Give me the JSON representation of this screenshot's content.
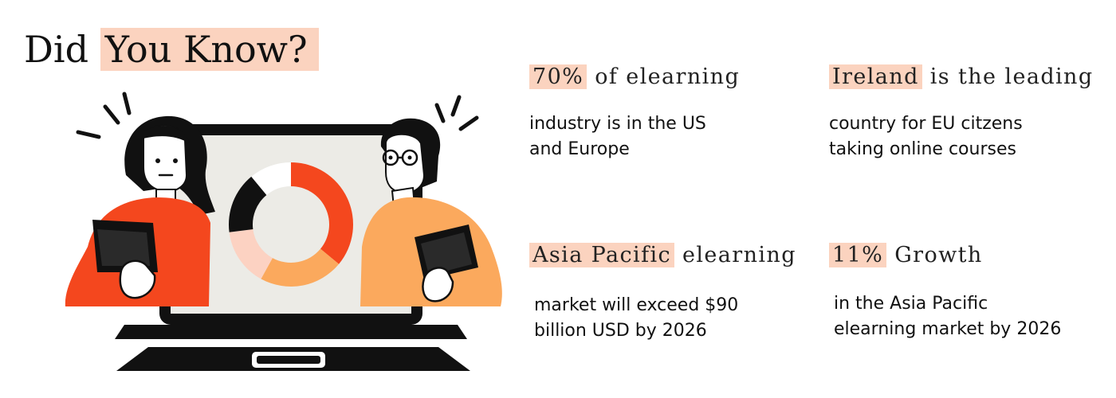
{
  "title": {
    "prefix": "Did ",
    "highlight": "You Know?"
  },
  "colors": {
    "highlight": "#fbd3bf",
    "orange_red": "#f4471e",
    "light_orange": "#fba95d",
    "peach": "#fcd2c2",
    "black": "#111111",
    "screen": "#ecebe6"
  },
  "illustration": {
    "donut_segments": [
      {
        "label": "segment-red",
        "value": 0.36,
        "color": "#f4471e"
      },
      {
        "label": "segment-light-orange",
        "value": 0.22,
        "color": "#fba95d"
      },
      {
        "label": "segment-peach",
        "value": 0.15,
        "color": "#fcd2c2"
      },
      {
        "label": "segment-black",
        "value": 0.16,
        "color": "#111111"
      },
      {
        "label": "segment-white",
        "value": 0.11,
        "color": "#ffffff"
      }
    ]
  },
  "facts": [
    {
      "highlight": "70%",
      "rest": " of elearning",
      "body_lines": [
        "industry is in the US",
        "and Europe"
      ]
    },
    {
      "highlight": "Ireland",
      "rest": " is the leading",
      "body_lines": [
        "country for EU citzens",
        "taking online courses"
      ]
    },
    {
      "highlight": "Asia Pacific",
      "rest": " elearning",
      "body_lines": [
        "market will exceed $90",
        "billion USD by 2026"
      ]
    },
    {
      "highlight": "11%",
      "rest": " Growth",
      "body_lines": [
        "in the Asia Pacific",
        "elearning market by 2026"
      ]
    }
  ]
}
